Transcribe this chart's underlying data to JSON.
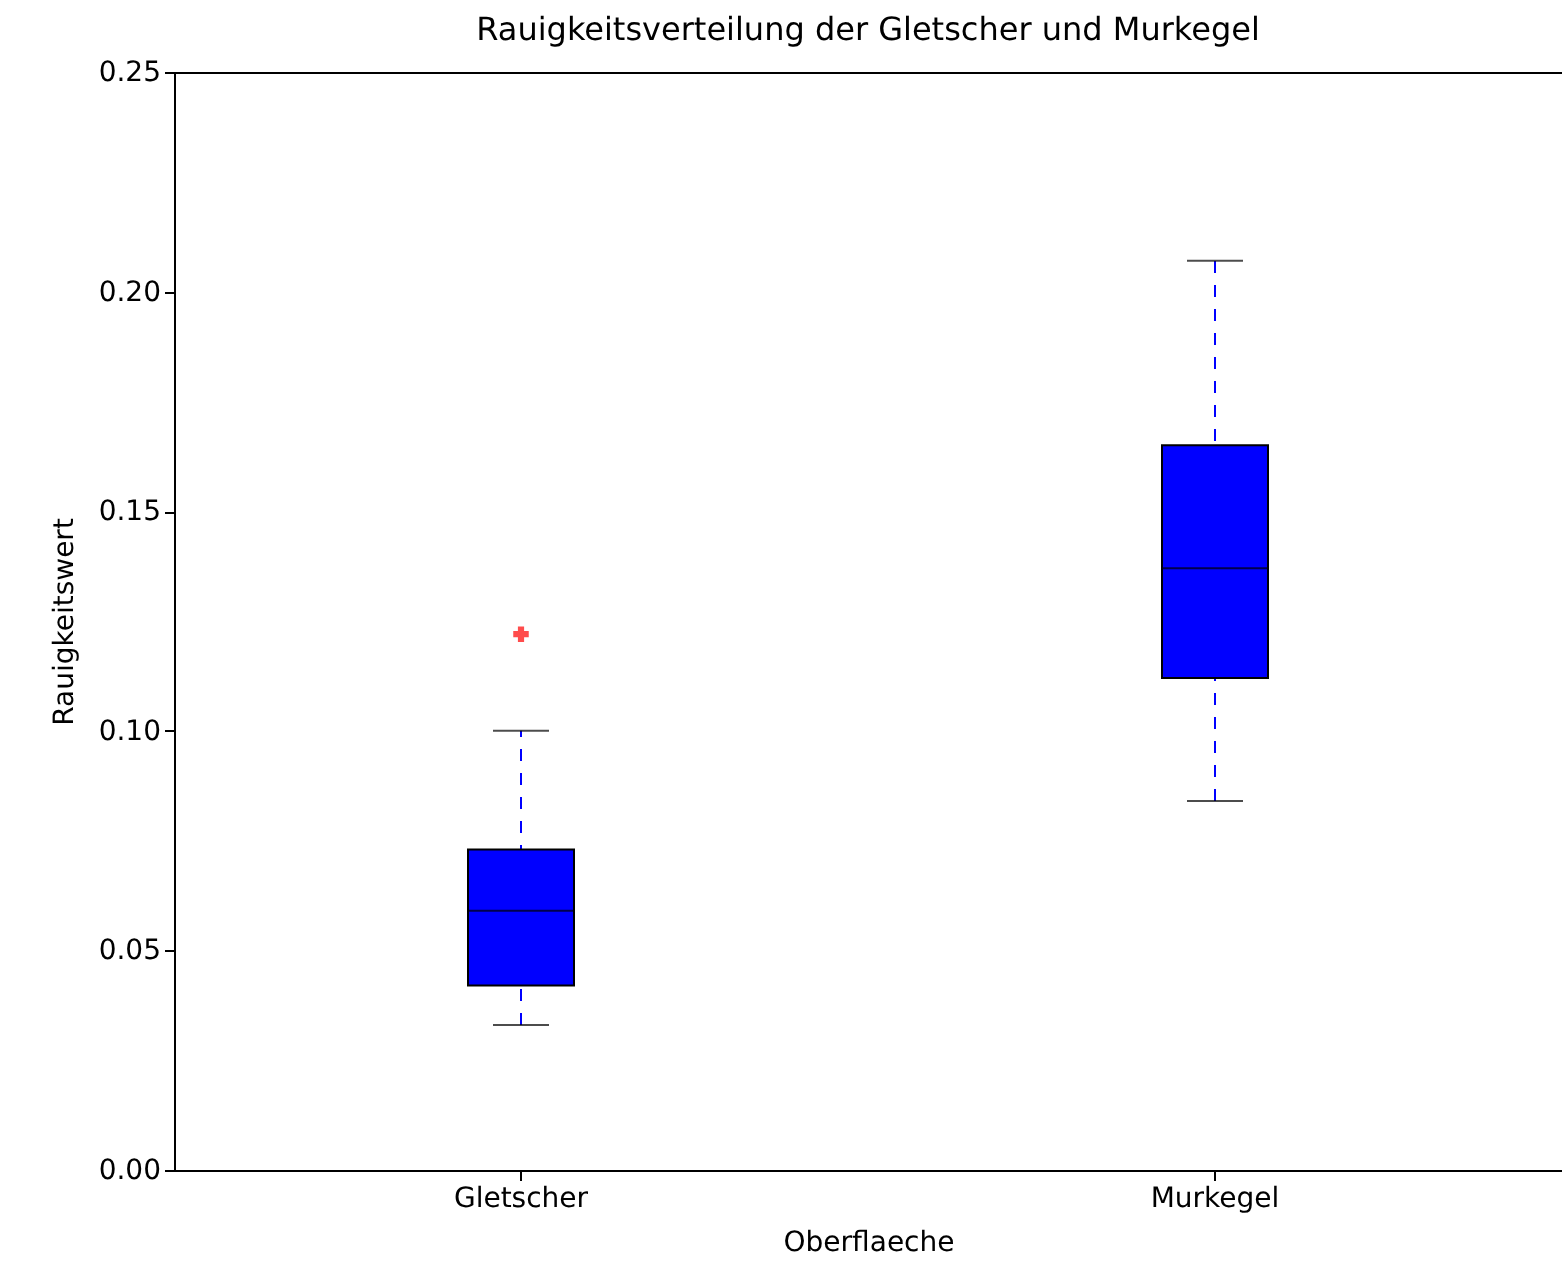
{
  "chart_data": {
    "type": "box",
    "title": "Rauigkeitsverteilung der Gletscher und Murkegel",
    "xlabel": "Oberflaeche",
    "ylabel": "Rauigkeitswert",
    "categories": [
      "Gletscher",
      "Murkegel"
    ],
    "series": [
      {
        "color": "#0000ff",
        "boxes": [
          {
            "low": 0.033,
            "q1": 0.042,
            "median": 0.059,
            "q3": 0.073,
            "high": 0.1,
            "outliers": [
              0.122
            ]
          },
          {
            "low": 0.084,
            "q1": 0.112,
            "median": 0.137,
            "q3": 0.165,
            "high": 0.207
          }
        ]
      }
    ],
    "ylim": [
      0,
      0.25
    ],
    "yticks": [
      {
        "value": 0,
        "label": "0.00"
      },
      {
        "value": 0.05,
        "label": "0.05"
      },
      {
        "value": 0.1,
        "label": "0.10"
      },
      {
        "value": 0.15,
        "label": "0.15"
      },
      {
        "value": 0.2,
        "label": "0.20"
      },
      {
        "value": 0.25,
        "label": "0.25"
      }
    ],
    "grid": false,
    "marker": "cross",
    "line_style": "dashed"
  }
}
